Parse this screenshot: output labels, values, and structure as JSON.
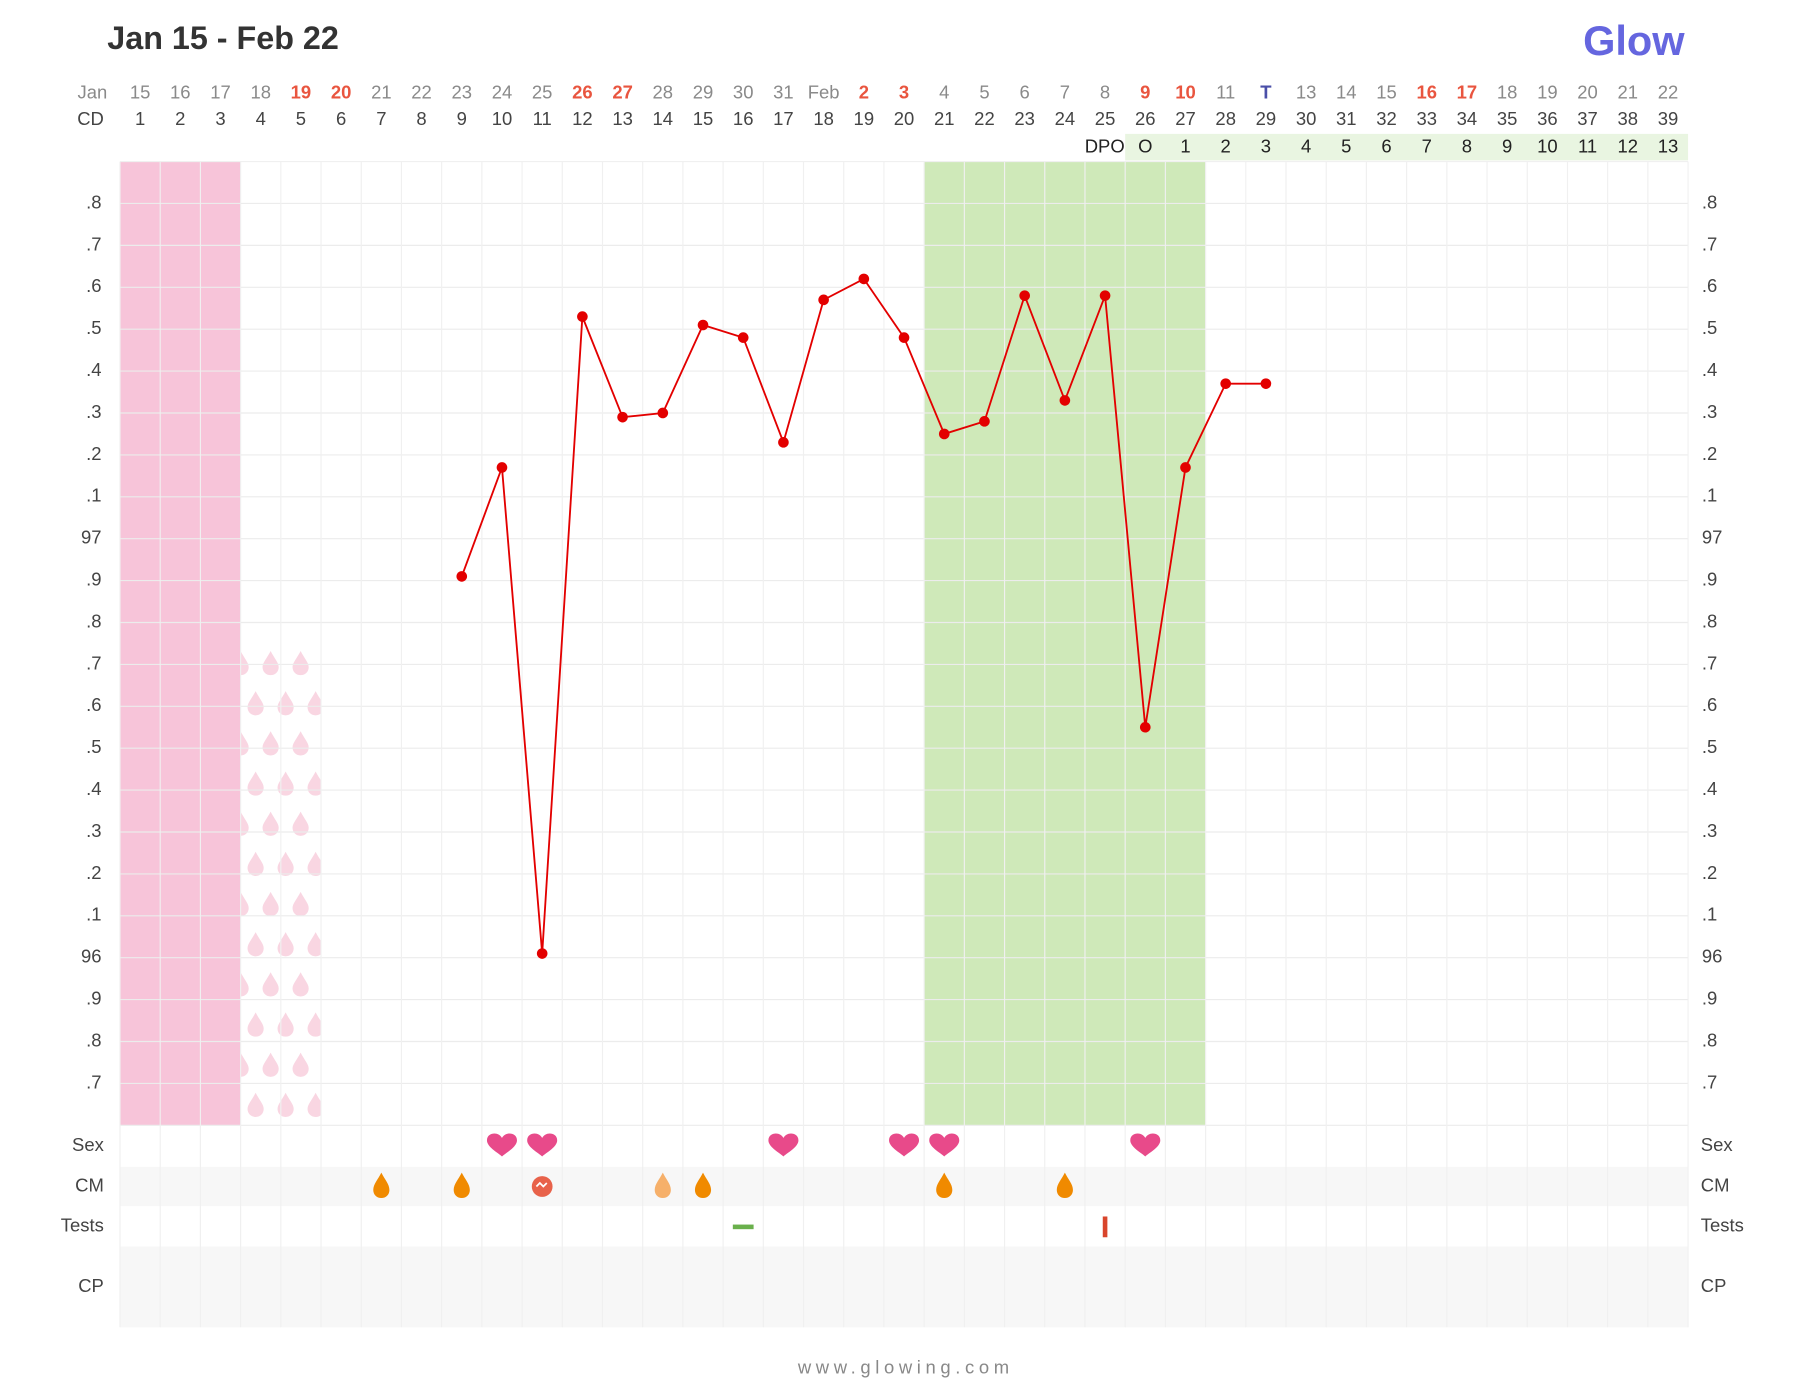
{
  "chart_data": {
    "type": "line",
    "title": "Jan 15 - Feb 22",
    "logo": "Glow",
    "footer": "www.glowing.com",
    "month_label": "Jan",
    "dates": [
      15,
      16,
      17,
      18,
      19,
      20,
      21,
      22,
      23,
      24,
      25,
      26,
      27,
      28,
      29,
      30,
      31,
      "Feb",
      2,
      3,
      4,
      5,
      6,
      7,
      8,
      9,
      10,
      11,
      "T",
      13,
      14,
      15,
      16,
      17,
      18,
      19,
      20,
      21,
      22
    ],
    "date_colors": [
      "#8a8a8a",
      "#8a8a8a",
      "#8a8a8a",
      "#8a8a8a",
      "#e9553f",
      "#e9553f",
      "#8a8a8a",
      "#8a8a8a",
      "#8a8a8a",
      "#8a8a8a",
      "#8a8a8a",
      "#e9553f",
      "#e9553f",
      "#8a8a8a",
      "#8a8a8a",
      "#8a8a8a",
      "#8a8a8a",
      "#8a8a8a",
      "#e9553f",
      "#e9553f",
      "#8a8a8a",
      "#8a8a8a",
      "#8a8a8a",
      "#8a8a8a",
      "#8a8a8a",
      "#e9553f",
      "#e9553f",
      "#8a8a8a",
      "#4a4fa8",
      "#8a8a8a",
      "#8a8a8a",
      "#8a8a8a",
      "#e9553f",
      "#e9553f",
      "#8a8a8a",
      "#8a8a8a",
      "#8a8a8a",
      "#8a8a8a",
      "#8a8a8a"
    ],
    "x_label": "CD",
    "x": [
      1,
      2,
      3,
      4,
      5,
      6,
      7,
      8,
      9,
      10,
      11,
      12,
      13,
      14,
      15,
      16,
      17,
      18,
      19,
      20,
      21,
      22,
      23,
      24,
      25,
      26,
      27,
      28,
      29,
      30,
      31,
      32,
      33,
      34,
      35,
      36,
      37,
      38,
      39
    ],
    "dpo_label": "DPO",
    "dpo": [
      null,
      null,
      null,
      null,
      null,
      null,
      null,
      null,
      null,
      null,
      null,
      null,
      null,
      null,
      null,
      null,
      null,
      null,
      null,
      null,
      null,
      null,
      null,
      null,
      null,
      "O",
      1,
      2,
      3,
      4,
      5,
      6,
      7,
      8,
      9,
      10,
      11,
      12,
      13
    ],
    "values": [
      null,
      null,
      null,
      null,
      null,
      null,
      null,
      null,
      96.91,
      97.17,
      96.01,
      97.53,
      97.29,
      97.3,
      97.51,
      97.48,
      97.23,
      97.57,
      97.62,
      97.48,
      97.25,
      97.28,
      97.58,
      97.33,
      97.58,
      96.55,
      97.17,
      97.37,
      97.37,
      null,
      null,
      null,
      null,
      null,
      null,
      null,
      null,
      null,
      null
    ],
    "color": "#e30000",
    "ylim": [
      95.6,
      97.9
    ],
    "yticks": [
      {
        "value": 97.8,
        "label": ".8"
      },
      {
        "value": 97.7,
        "label": ".7"
      },
      {
        "value": 97.6,
        "label": ".6"
      },
      {
        "value": 97.5,
        "label": ".5"
      },
      {
        "value": 97.4,
        "label": ".4"
      },
      {
        "value": 97.3,
        "label": ".3"
      },
      {
        "value": 97.2,
        "label": ".2"
      },
      {
        "value": 97.1,
        "label": ".1"
      },
      97,
      {
        "value": 96.9,
        "label": ".9"
      },
      {
        "value": 96.8,
        "label": ".8"
      },
      {
        "value": 96.7,
        "label": ".7"
      },
      {
        "value": 96.6,
        "label": ".6"
      },
      {
        "value": 96.5,
        "label": ".5"
      },
      {
        "value": 96.4,
        "label": ".4"
      },
      {
        "value": 96.3,
        "label": ".3"
      },
      {
        "value": 96.2,
        "label": ".2"
      },
      {
        "value": 96.1,
        "label": ".1"
      },
      96,
      {
        "value": 95.9,
        "label": ".9"
      },
      {
        "value": 95.8,
        "label": ".8"
      },
      {
        "value": 95.7,
        "label": ".7"
      }
    ],
    "grid": true,
    "bands": [
      {
        "kind": "period",
        "start": 1,
        "end": 3,
        "color": "#f7c1d7"
      },
      {
        "kind": "spotting",
        "start": 4,
        "end": 5,
        "color": "#f9d6e2"
      },
      {
        "kind": "fertile",
        "start": 21,
        "end": 27,
        "color": "#cce8b5"
      }
    ],
    "rows": [
      {
        "name": "Sex",
        "events": [
          {
            "cd": 10,
            "kind": "heart",
            "color": "#e84a8a"
          },
          {
            "cd": 11,
            "kind": "heart",
            "color": "#e84a8a"
          },
          {
            "cd": 17,
            "kind": "heart",
            "color": "#e84a8a"
          },
          {
            "cd": 20,
            "kind": "heart",
            "color": "#e84a8a"
          },
          {
            "cd": 21,
            "kind": "heart",
            "color": "#e84a8a"
          },
          {
            "cd": 26,
            "kind": "heart",
            "color": "#e84a8a"
          }
        ]
      },
      {
        "name": "CM",
        "events": [
          {
            "cd": 7,
            "kind": "drop",
            "color": "#f08a00"
          },
          {
            "cd": 9,
            "kind": "drop",
            "color": "#f08a00"
          },
          {
            "cd": 11,
            "kind": "egg",
            "color": "#e8624a"
          },
          {
            "cd": 14,
            "kind": "drop",
            "color": "#f6b06a"
          },
          {
            "cd": 15,
            "kind": "drop",
            "color": "#f08a00"
          },
          {
            "cd": 21,
            "kind": "drop",
            "color": "#f08a00"
          },
          {
            "cd": 24,
            "kind": "drop",
            "color": "#f08a00"
          }
        ]
      },
      {
        "name": "Tests",
        "events": [
          {
            "cd": 16,
            "kind": "dash",
            "color": "#6ab04c"
          },
          {
            "cd": 25,
            "kind": "bar",
            "color": "#d9452c"
          }
        ]
      },
      {
        "name": "CP",
        "events": []
      }
    ]
  }
}
